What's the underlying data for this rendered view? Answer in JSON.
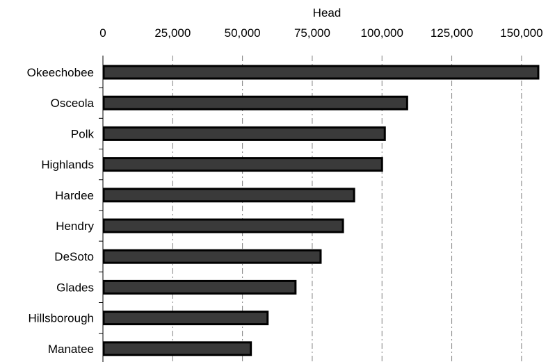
{
  "chart_data": {
    "type": "bar",
    "orientation": "horizontal",
    "title": "",
    "xlabel": "Head",
    "ylabel": "",
    "xlim": [
      0,
      160000
    ],
    "x_ticks": [
      0,
      25000,
      50000,
      75000,
      100000,
      125000,
      150000
    ],
    "x_tick_labels": [
      "0",
      "25,000",
      "50,000",
      "75,000",
      "100,000",
      "125,000",
      "150,000"
    ],
    "axis_position": "top",
    "grid": "vertical dashed",
    "categories": [
      "Okeechobee",
      "Osceola",
      "Polk",
      "Highlands",
      "Hardee",
      "Hendry",
      "DeSoto",
      "Glades",
      "Hillsborough",
      "Manatee"
    ],
    "values": [
      156000,
      109000,
      101000,
      100000,
      90000,
      86000,
      78000,
      69000,
      59000,
      53000
    ],
    "colors": {
      "bar_fill": "#3a3a3a",
      "bar_stroke": "#000000",
      "grid": "#808080"
    }
  }
}
